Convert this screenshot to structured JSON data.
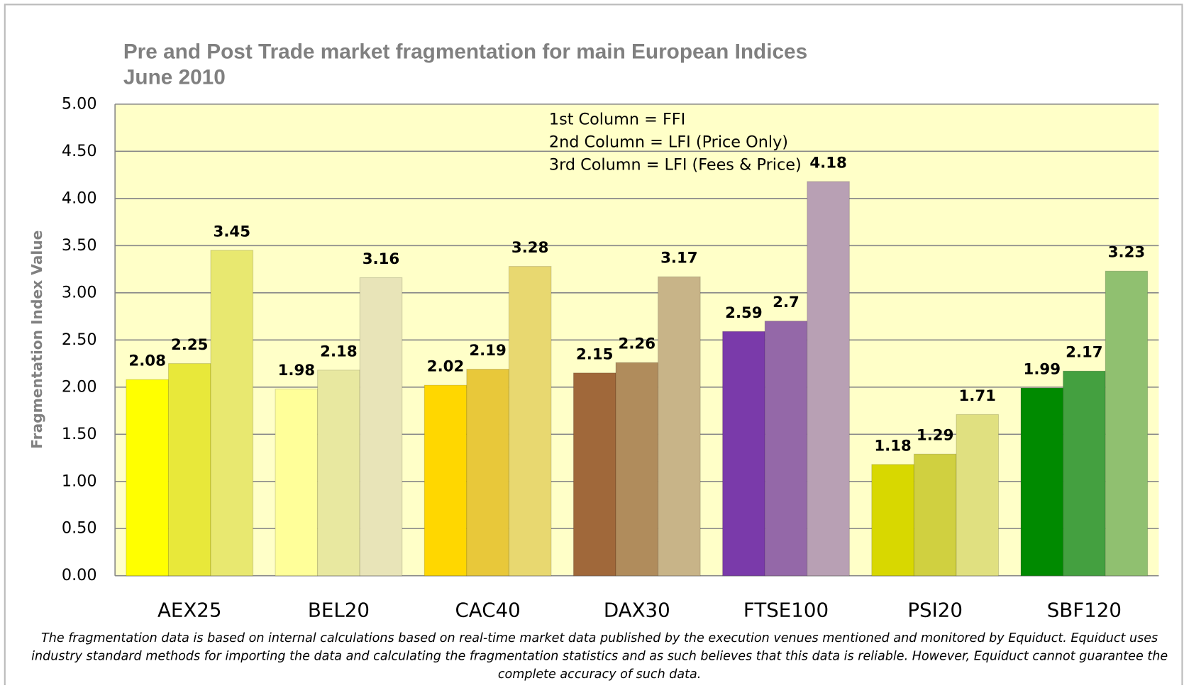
{
  "chart_data": {
    "type": "bar",
    "title": "Pre and Post Trade market fragmentation for main European Indices",
    "subtitle": "June 2010",
    "y_label": "Fragmentation Index Value",
    "annotations": [
      "1st Column = FFI",
      "2nd Column = LFI (Price Only)",
      "3rd Column = LFI (Fees & Price)"
    ],
    "footnote": [
      "The fragmentation data is based on internal calculations based on real-time market data published by the execution venues mentioned and monitored by Equiduct.  Equiduct uses",
      "industry standard methods for importing the data and calculating the fragmentation statistics and as such believes that this data is reliable.  However, Equiduct cannot guarantee the",
      "complete accuracy of such data."
    ],
    "categories": [
      "AEX25",
      "BEL20",
      "CAC40",
      "DAX30",
      "FTSE100",
      "PSI20",
      "SBF120"
    ],
    "series": [
      {
        "values": [
          2.08,
          1.98,
          2.02,
          2.15,
          2.59,
          1.18,
          1.99
        ],
        "colors": [
          "#ffff00",
          "#ffff99",
          "#ffd700",
          "#a0683a",
          "#7a3aaa",
          "#d8d800",
          "#008a00"
        ]
      },
      {
        "values": [
          2.25,
          2.18,
          2.19,
          2.26,
          2.7,
          1.29,
          2.17
        ],
        "colors": [
          "#e8e83a",
          "#e8e8a0",
          "#e8c83a",
          "#b08c5c",
          "#9468a8",
          "#d0d040",
          "#44a040"
        ]
      },
      {
        "values": [
          3.45,
          3.16,
          3.28,
          3.17,
          4.18,
          1.71,
          3.23
        ],
        "colors": [
          "#e8e870",
          "#e8e4b8",
          "#e8d870",
          "#c8b488",
          "#b8a0b4",
          "#e0e080",
          "#90c070"
        ]
      }
    ],
    "ylim": [
      0,
      5
    ],
    "yticks": [
      {
        "value": 0,
        "label": "0.00"
      },
      {
        "value": 0.5,
        "label": "0.50"
      },
      {
        "value": 1,
        "label": "1.00"
      },
      {
        "value": 1.5,
        "label": "1.50"
      },
      {
        "value": 2,
        "label": "2.00"
      },
      {
        "value": 2.5,
        "label": "2.50"
      },
      {
        "value": 3,
        "label": "3.00"
      },
      {
        "value": 3.5,
        "label": "3.50"
      },
      {
        "value": 4,
        "label": "4.00"
      },
      {
        "value": 4.5,
        "label": "4.50"
      },
      {
        "value": 5,
        "label": "5.00"
      }
    ],
    "grid": true,
    "plot_background": "#ffffc8"
  }
}
